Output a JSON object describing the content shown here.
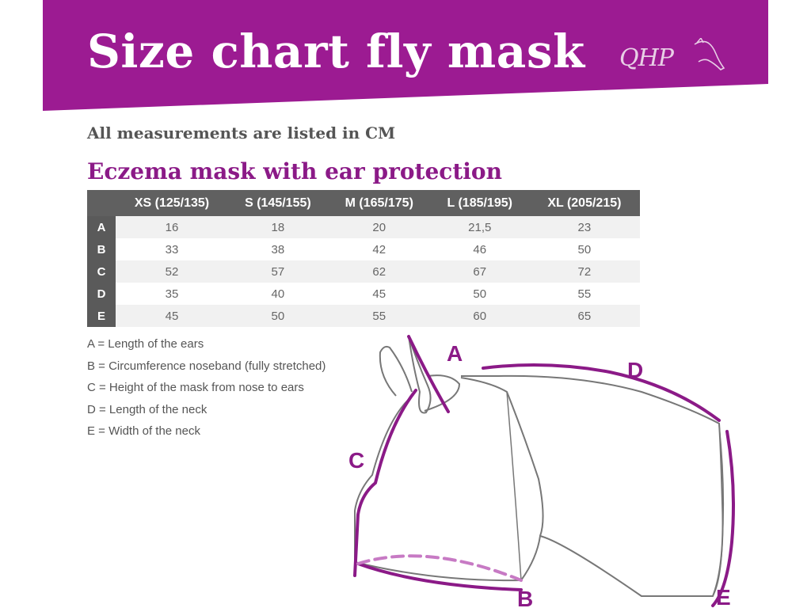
{
  "header": {
    "title": "Size chart fly mask",
    "brand": "QHP",
    "band_color": "#9c1b92"
  },
  "units_note": "All measurements are listed in CM",
  "table": {
    "title": "Eczema mask with ear protection",
    "columns": [
      "XS (125/135)",
      "S (145/155)",
      "M (165/175)",
      "L (185/195)",
      "XL (205/215)"
    ],
    "rows": [
      {
        "label": "A",
        "values": [
          "16",
          "18",
          "20",
          "21,5",
          "23"
        ]
      },
      {
        "label": "B",
        "values": [
          "33",
          "38",
          "42",
          "46",
          "50"
        ]
      },
      {
        "label": "C",
        "values": [
          "52",
          "57",
          "62",
          "67",
          "72"
        ]
      },
      {
        "label": "D",
        "values": [
          "35",
          "40",
          "45",
          "50",
          "55"
        ]
      },
      {
        "label": "E",
        "values": [
          "45",
          "50",
          "55",
          "60",
          "65"
        ]
      }
    ]
  },
  "legend": [
    "A = Length of the ears",
    "B = Circumference noseband (fully stretched)",
    "C = Height of the mask from nose to ears",
    "D = Length of the neck",
    "E = Width of the neck"
  ],
  "diagram": {
    "labels": {
      "a": "A",
      "b": "B",
      "c": "C",
      "d": "D",
      "e": "E"
    },
    "accent_color": "#8b1a87",
    "outline_color": "#777777"
  }
}
